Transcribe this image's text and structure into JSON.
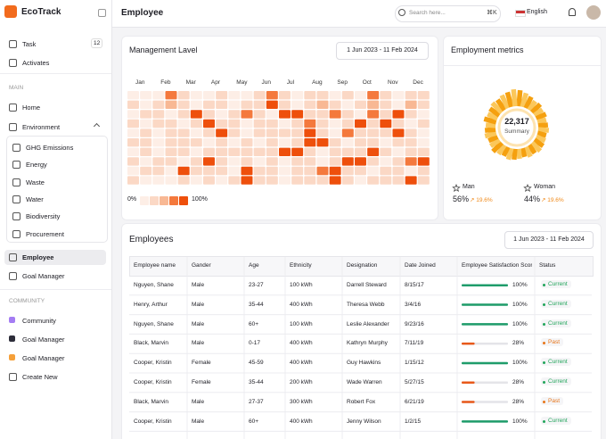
{
  "sidebar": {
    "brand": "EcoTrack",
    "top": [
      {
        "label": "Task",
        "badge": "12"
      },
      {
        "label": "Activates"
      }
    ],
    "main_heading": "MAIN",
    "main": [
      {
        "label": "Home"
      },
      {
        "label": "Environment"
      }
    ],
    "environment": [
      "GHG Emissions",
      "Energy",
      "Waste",
      "Water",
      "Biodiversity",
      "Procurement"
    ],
    "after": [
      {
        "label": "Employee",
        "active": true
      },
      {
        "label": "Goal Manager"
      }
    ],
    "community_heading": "COMMUNITY",
    "community": [
      {
        "label": "Community",
        "color": "#a47cf3"
      },
      {
        "label": "Goal Manager",
        "color": "#2d2d3a"
      },
      {
        "label": "Goal Manager",
        "color": "#f5a03a"
      },
      {
        "label": "Create New"
      }
    ]
  },
  "header": {
    "title": "Employee",
    "search_placeholder": "Search here...",
    "shortcut": "⌘K",
    "language": "English"
  },
  "management": {
    "title": "Management Lavel",
    "date_range": "1 Jun 2023 - 11 Feb 2024",
    "months": [
      "Jan",
      "Feb",
      "Mar",
      "Apr",
      "May",
      "Jun",
      "Jul",
      "Aug",
      "Sep",
      "Oct",
      "Nov",
      "Dec"
    ],
    "palette": [
      "#fdeee6",
      "#fbd8c5",
      "#f8b894",
      "#f4793d",
      "#ee4f0c"
    ],
    "legend_min": "0%",
    "legend_max": "100%",
    "levels": [
      [
        0,
        0,
        0,
        3,
        1,
        0,
        0,
        1,
        0,
        0,
        1,
        3,
        1,
        0,
        1,
        1,
        0,
        1,
        0,
        3,
        1,
        0,
        1,
        1
      ],
      [
        1,
        0,
        1,
        2,
        1,
        0,
        1,
        1,
        0,
        1,
        1,
        4,
        1,
        0,
        1,
        2,
        1,
        0,
        1,
        2,
        1,
        0,
        2,
        1
      ],
      [
        0,
        1,
        1,
        0,
        1,
        4,
        1,
        0,
        1,
        3,
        1,
        0,
        4,
        4,
        1,
        1,
        3,
        1,
        0,
        3,
        1,
        4,
        1,
        0
      ],
      [
        1,
        0,
        1,
        1,
        0,
        1,
        4,
        1,
        1,
        0,
        1,
        1,
        0,
        1,
        3,
        1,
        0,
        1,
        4,
        1,
        4,
        1,
        0,
        1
      ],
      [
        0,
        1,
        0,
        1,
        1,
        0,
        1,
        4,
        1,
        0,
        1,
        1,
        1,
        1,
        4,
        1,
        0,
        3,
        1,
        1,
        1,
        4,
        1,
        0
      ],
      [
        1,
        1,
        0,
        1,
        1,
        1,
        0,
        1,
        0,
        1,
        0,
        1,
        0,
        1,
        4,
        4,
        1,
        0,
        1,
        1,
        0,
        1,
        1,
        0
      ],
      [
        0,
        1,
        0,
        1,
        1,
        0,
        1,
        1,
        1,
        1,
        1,
        1,
        4,
        4,
        1,
        0,
        1,
        1,
        1,
        4,
        1,
        0,
        1,
        1
      ],
      [
        1,
        0,
        1,
        1,
        0,
        1,
        4,
        1,
        0,
        1,
        0,
        1,
        0,
        1,
        1,
        0,
        1,
        4,
        4,
        1,
        0,
        1,
        3,
        4
      ],
      [
        0,
        1,
        1,
        0,
        4,
        1,
        1,
        1,
        0,
        4,
        1,
        1,
        0,
        1,
        1,
        3,
        4,
        1,
        1,
        0,
        1,
        1,
        0,
        1
      ],
      [
        1,
        0,
        0,
        0,
        1,
        0,
        1,
        0,
        1,
        4,
        1,
        1,
        0,
        1,
        1,
        1,
        4,
        1,
        0,
        1,
        1,
        1,
        4,
        1
      ]
    ]
  },
  "metrics": {
    "title": "Employment metrics",
    "total": "22,317",
    "total_label": "Summary",
    "colors": [
      "#f5a00f",
      "#fbc75a"
    ],
    "bars": [
      18,
      16,
      14,
      12,
      13,
      11,
      12,
      10,
      11,
      12,
      10,
      11,
      12,
      13,
      11,
      12,
      10,
      11,
      12,
      13,
      11,
      12,
      14,
      12,
      11,
      13,
      12,
      11,
      14,
      12,
      13,
      15,
      14,
      16,
      17,
      19
    ],
    "groups": [
      {
        "label": "Man",
        "share": "56%",
        "change": "↗ 19.6%"
      },
      {
        "label": "Woman",
        "share": "44%",
        "change": "↗ 19.6%"
      }
    ]
  },
  "employees": {
    "title": "Employees",
    "date_range": "1 Jun 2023 - 11 Feb 2024",
    "columns": [
      "Employee name",
      "Gander",
      "Age",
      "Ethnicity",
      "Designation",
      "Date Joined",
      "Employee Satisfaction Score",
      "Status"
    ],
    "rows": [
      {
        "name": "Nguyen, Shane",
        "gender": "Male",
        "age": "23-27",
        "ethnicity": "100 kWh",
        "designation": "Darrell Steward",
        "date": "8/15/17",
        "satisfaction": 100,
        "satisfaction_label": "100%",
        "bar_color": "#1f9d6b",
        "status": "Current",
        "status_color": "#22a55b"
      },
      {
        "name": "Henry, Arthur",
        "gender": "Male",
        "age": "35-44",
        "ethnicity": "400 kWh",
        "designation": "Theresa Webb",
        "date": "3/4/16",
        "satisfaction": 100,
        "satisfaction_label": "100%",
        "bar_color": "#1f9d6b",
        "status": "Current",
        "status_color": "#22a55b"
      },
      {
        "name": "Nguyen, Shane",
        "gender": "Male",
        "age": "60+",
        "ethnicity": "100 kWh",
        "designation": "Leslie Alexander",
        "date": "9/23/16",
        "satisfaction": 100,
        "satisfaction_label": "100%",
        "bar_color": "#1f9d6b",
        "status": "Current",
        "status_color": "#22a55b"
      },
      {
        "name": "Black, Marvin",
        "gender": "Male",
        "age": "0-17",
        "ethnicity": "400 kWh",
        "designation": "Kathryn Murphy",
        "date": "7/11/19",
        "satisfaction": 28,
        "satisfaction_label": "28%",
        "bar_color": "#e8591a",
        "status": "Past",
        "status_color": "#e8761a"
      },
      {
        "name": "Cooper, Kristin",
        "gender": "Female",
        "age": "45-59",
        "ethnicity": "400 kWh",
        "designation": "Guy Hawkins",
        "date": "1/15/12",
        "satisfaction": 100,
        "satisfaction_label": "100%",
        "bar_color": "#1f9d6b",
        "status": "Current",
        "status_color": "#22a55b"
      },
      {
        "name": "Cooper, Kristin",
        "gender": "Female",
        "age": "35-44",
        "ethnicity": "200 kWh",
        "designation": "Wade Warren",
        "date": "5/27/15",
        "satisfaction": 28,
        "satisfaction_label": "28%",
        "bar_color": "#e8591a",
        "status": "Current",
        "status_color": "#22a55b"
      },
      {
        "name": "Black, Marvin",
        "gender": "Male",
        "age": "27-37",
        "ethnicity": "300 kWh",
        "designation": "Robert Fox",
        "date": "6/21/19",
        "satisfaction": 28,
        "satisfaction_label": "28%",
        "bar_color": "#e8591a",
        "status": "Past",
        "status_color": "#e8761a"
      },
      {
        "name": "Cooper, Kristin",
        "gender": "Male",
        "age": "60+",
        "ethnicity": "400 kWh",
        "designation": "Jenny Wilson",
        "date": "1/2/15",
        "satisfaction": 100,
        "satisfaction_label": "100%",
        "bar_color": "#1f9d6b",
        "status": "Current",
        "status_color": "#22a55b"
      }
    ]
  }
}
